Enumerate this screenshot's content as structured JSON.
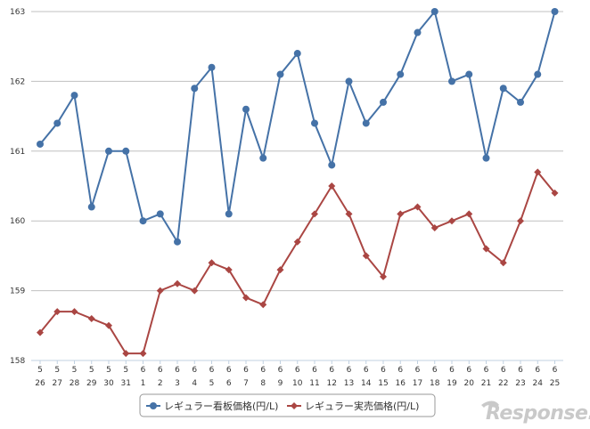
{
  "chart_data": {
    "type": "line",
    "x_months": [
      "5",
      "5",
      "5",
      "5",
      "5",
      "5",
      "6",
      "6",
      "6",
      "6",
      "6",
      "6",
      "6",
      "6",
      "6",
      "6",
      "6",
      "6",
      "6",
      "6",
      "6",
      "6",
      "6",
      "6",
      "6",
      "6",
      "6",
      "6",
      "6",
      "6",
      "6"
    ],
    "x_days": [
      "26",
      "27",
      "28",
      "29",
      "30",
      "31",
      "1",
      "2",
      "3",
      "4",
      "5",
      "6",
      "7",
      "8",
      "9",
      "10",
      "11",
      "12",
      "13",
      "14",
      "15",
      "16",
      "17",
      "18",
      "19",
      "20",
      "21",
      "22",
      "23",
      "24",
      "25"
    ],
    "ylim": [
      158,
      163
    ],
    "yticks": [
      158,
      159,
      160,
      161,
      162,
      163
    ],
    "grid": true,
    "legend_position": "bottom-center",
    "series": [
      {
        "name": "レギュラー看板価格(円/L)",
        "color": "#4572a7",
        "marker": "circle",
        "values": [
          161.1,
          161.4,
          161.8,
          160.2,
          161.0,
          161.0,
          160.0,
          160.1,
          159.7,
          161.9,
          162.2,
          160.1,
          161.6,
          160.9,
          162.1,
          162.4,
          161.4,
          160.8,
          162.0,
          161.4,
          161.7,
          162.1,
          162.7,
          163.0,
          162.0,
          162.1,
          160.9,
          161.9,
          161.7,
          162.1,
          163.0
        ]
      },
      {
        "name": "レギュラー実売価格(円/L)",
        "color": "#aa4643",
        "marker": "diamond",
        "values": [
          158.4,
          158.7,
          158.7,
          158.6,
          158.5,
          158.1,
          158.1,
          159.0,
          159.1,
          159.0,
          159.4,
          159.3,
          158.9,
          158.8,
          159.3,
          159.7,
          160.1,
          160.5,
          160.1,
          159.5,
          159.2,
          160.1,
          160.2,
          159.9,
          160.0,
          160.1,
          159.6,
          159.4,
          160.0,
          160.7,
          160.4
        ]
      }
    ]
  },
  "watermark": "Response."
}
